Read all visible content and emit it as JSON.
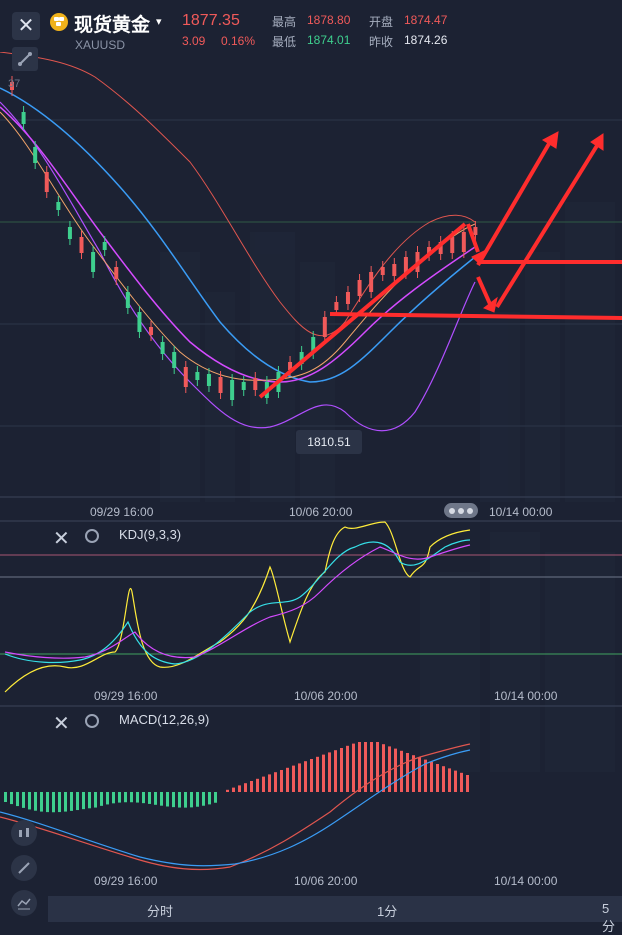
{
  "header": {
    "close_label": "✕",
    "title": "现货黄金",
    "caret": "▾",
    "symbol": "XAUUSD",
    "price": "1877.35",
    "change": "3.09",
    "change_pct": "0.16%",
    "high_label": "最高",
    "high_value": "1878.80",
    "open_label": "开盘",
    "open_value": "1874.47",
    "low_label": "最低",
    "low_value": "1874.01",
    "prev_close_label": "昨收",
    "prev_close_value": "1874.26"
  },
  "main_chart": {
    "left_axis_value": "37",
    "low_marker": "1810.51",
    "x_labels": [
      "09/29 16:00",
      "10/06 20:00",
      "10/14 00:00"
    ]
  },
  "kdj_panel": {
    "close_label": "✕",
    "name": "KDJ(9,3,3)",
    "x_labels": [
      "09/29 16:00",
      "10/06 20:00",
      "10/14 00:00"
    ]
  },
  "macd_panel": {
    "close_label": "✕",
    "name": "MACD(12,26,9)",
    "x_labels": [
      "09/29 16:00",
      "10/06 20:00",
      "10/14 00:00"
    ]
  },
  "bottom_tabs": [
    "分时",
    "1分",
    "5分"
  ],
  "icons": {
    "close": "close-icon",
    "gold": "gold-coin-icon",
    "draw": "draw-line-icon",
    "settings": "settings-gear-icon",
    "candle": "candlestick-icon",
    "pen": "pen-icon",
    "indicator": "indicator-icon",
    "more": "more-dots-icon"
  },
  "colors": {
    "background": "#1c2233",
    "up": "#f05a5a",
    "down": "#3ecf8e",
    "bollinger_upper": "#f05a5a",
    "bollinger_lower": "#b04fff",
    "ma_blue": "#3a9cf5",
    "annotation_red": "#ff2d2d"
  }
}
